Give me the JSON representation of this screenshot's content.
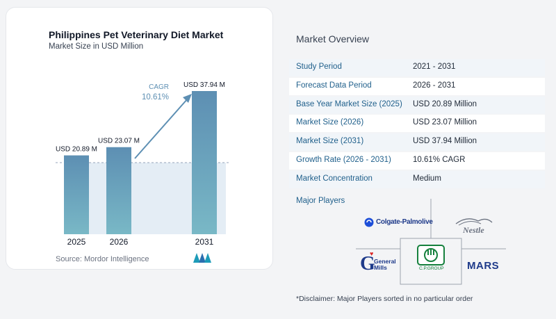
{
  "chart": {
    "title": "Philippines Pet Veterinary Diet Market",
    "subtitle": "Market Size in USD Million",
    "cagr_label": "CAGR",
    "cagr_value": "10.61%",
    "source": "Source:  Mordor Intelligence"
  },
  "chart_data": {
    "type": "bar",
    "categories": [
      "2025",
      "2026",
      "2031"
    ],
    "values": [
      20.89,
      23.07,
      37.94
    ],
    "data_labels": [
      "USD 20.89 M",
      "USD 23.07 M",
      "USD 37.94 M"
    ],
    "title": "Philippines Pet Veterinary Diet Market",
    "subtitle": "Market Size in USD Million",
    "cagr": "10.61%",
    "bar_color": "#5f93b5"
  },
  "overview": {
    "title": "Market Overview",
    "rows": [
      {
        "label": "Study Period",
        "value": "2021 - 2031"
      },
      {
        "label": "Forecast Data Period",
        "value": "2026 - 2031"
      },
      {
        "label": "Base Year Market Size (2025)",
        "value": "USD 20.89 Million"
      },
      {
        "label": "Market Size (2026)",
        "value": "USD 23.07 Million"
      },
      {
        "label": "Market Size (2031)",
        "value": "USD 37.94 Million"
      },
      {
        "label": "Growth Rate (2026 - 2031)",
        "value": "10.61% CAGR"
      },
      {
        "label": "Market Concentration",
        "value": "Medium"
      }
    ],
    "players_title": "Major Players",
    "players": [
      "Colgate-Palmolive",
      "Nestle",
      "General Mills",
      "C.P.GROUP",
      "MARS"
    ],
    "disclaimer": "*Disclaimer: Major Players sorted in no particular order"
  }
}
